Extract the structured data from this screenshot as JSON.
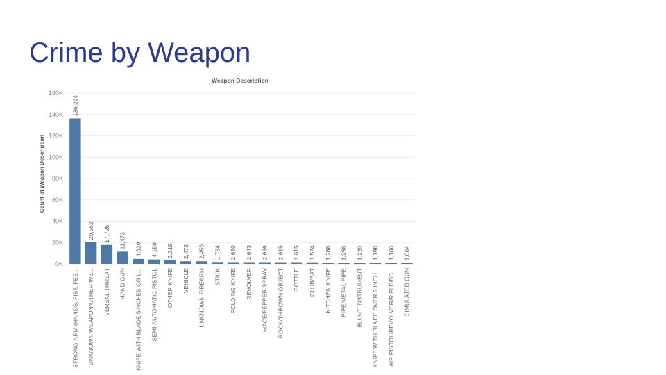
{
  "slide": {
    "title": "Crime by Weapon"
  },
  "colors": {
    "bar": "#4e79a7",
    "title": "#2b3a8c"
  },
  "chart_data": {
    "type": "bar",
    "title": "Weapon Description",
    "xlabel": "",
    "ylabel": "Count of Weapon Description",
    "ylim": [
      0,
      160000
    ],
    "yticks": [
      0,
      20000,
      40000,
      60000,
      80000,
      100000,
      120000,
      140000,
      160000
    ],
    "ytick_labels": [
      "0K",
      "20K",
      "40K",
      "60K",
      "80K",
      "100K",
      "120K",
      "140K",
      "160K"
    ],
    "grid": true,
    "categories": [
      "STRONG-ARM (HANDS, FIST, FEE...",
      "UNKNOWN WEAPON/OTHER WE...",
      "VERBAL THREAT",
      "HAND GUN",
      "KNIFE WITH BLADE 6INCHES OR L...",
      "SEMI-AUTOMATIC PISTOL",
      "OTHER KNIFE",
      "VEHICLE",
      "UNKNOWN FIREARM",
      "STICK",
      "FOLDING KNIFE",
      "REVOLVER",
      "MACE/PEPPER SPRAY",
      "ROCK/THROWN OBJECT",
      "BOTTLE",
      "CLUB/BAT",
      "KITCHEN KNIFE",
      "PIPE/METAL PIPE",
      "BLUNT INSTRUMENT",
      "KNIFE WITH BLADE OVER 6 INCH...",
      "AIR PISTOL/REVOLVER/RIFLE/BB...",
      "SIMULATED GUN"
    ],
    "values": [
      136264,
      20562,
      17726,
      11473,
      4629,
      4159,
      3319,
      2472,
      2456,
      1784,
      1650,
      1643,
      1636,
      1615,
      1615,
      1524,
      1268,
      1258,
      1220,
      1198,
      1166,
      1064
    ],
    "value_labels": [
      "136,264",
      "20,562",
      "17,726",
      "11,473",
      "4,629",
      "4,159",
      "3,319",
      "2,472",
      "2,456",
      "1,784",
      "1,650",
      "1,643",
      "1,636",
      "1,615",
      "1,615",
      "1,524",
      "1,268",
      "1,258",
      "1,220",
      "1,198",
      "1,166",
      "1,064"
    ]
  }
}
